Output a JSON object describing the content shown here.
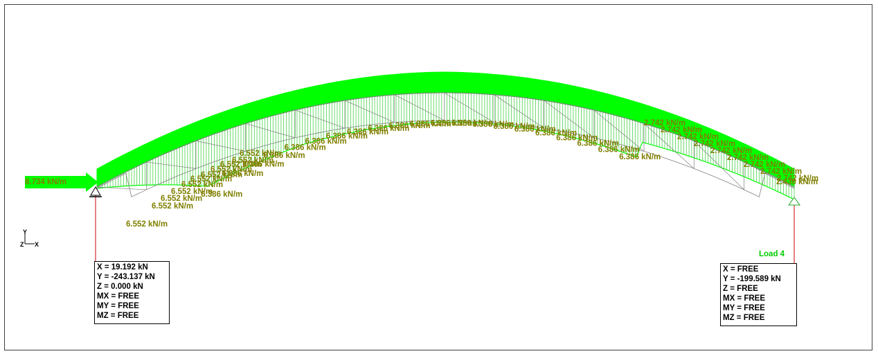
{
  "colors": {
    "load_fill": "#00ff00",
    "load_hatch": "#33cc33",
    "label_olive": "#7f7f00",
    "member": "#808080",
    "reaction_line": "#cc0000",
    "load_title": "#00cc00"
  },
  "load_title": "Load 4",
  "axis_triad": {
    "y": "Y",
    "z": "Z",
    "x": "X"
  },
  "horizontal_load_label": "8.734 kN/m",
  "load_labels": {
    "left_segment": [
      "6.552 kN/m",
      "6.552 kN/m",
      "6.552 kN/m",
      "6.552 kN/m",
      "6.552 kN/m",
      "6.552 kN/m",
      "6.552 kN/m",
      "6.552 kN/m",
      "6.552 kN/m",
      "6.552 kN/m",
      "6.552 kN/m"
    ],
    "crown_segment": [
      "6.386 kN/m",
      "6.386 kN/m",
      "6.386 kN/m",
      "6.386 kN/m",
      "6.386 kN/m",
      "6.386 kN/m",
      "6.386 kN/m",
      "6.386 kN/m",
      "6.386 kN/m",
      "6.386 kN/m",
      "6.386 kN/m",
      "6.386 kN/m",
      "6.386 kN/m",
      "6.386 kN/m",
      "6.386 kN/m",
      "6.386 kN/m",
      "6.386 kN/m",
      "6.386 kN/m",
      "6.386 kN/m",
      "6.386 kN/m",
      "6.386 kN/m"
    ],
    "right_segment": [
      "2.742 kN/m",
      "2.742 kN/m",
      "2.742 kN/m",
      "2.742 kN/m",
      "2.742 kN/m",
      "2.742 kN/m",
      "2.742 kN/m",
      "2.742 kN/m",
      "2.742 kN/m"
    ],
    "right_end": "2.436 kN/m"
  },
  "reactions": {
    "left": [
      "X = 19.192 kN",
      "Y = -243.137 kN",
      "Z = 0.000 kN",
      "MX = FREE",
      "MY = FREE",
      "MZ = FREE"
    ],
    "right": [
      "X = FREE",
      "Y = -199.589 kN",
      "Z = FREE",
      "MX = FREE",
      "MY = FREE",
      "MZ = FREE"
    ]
  }
}
